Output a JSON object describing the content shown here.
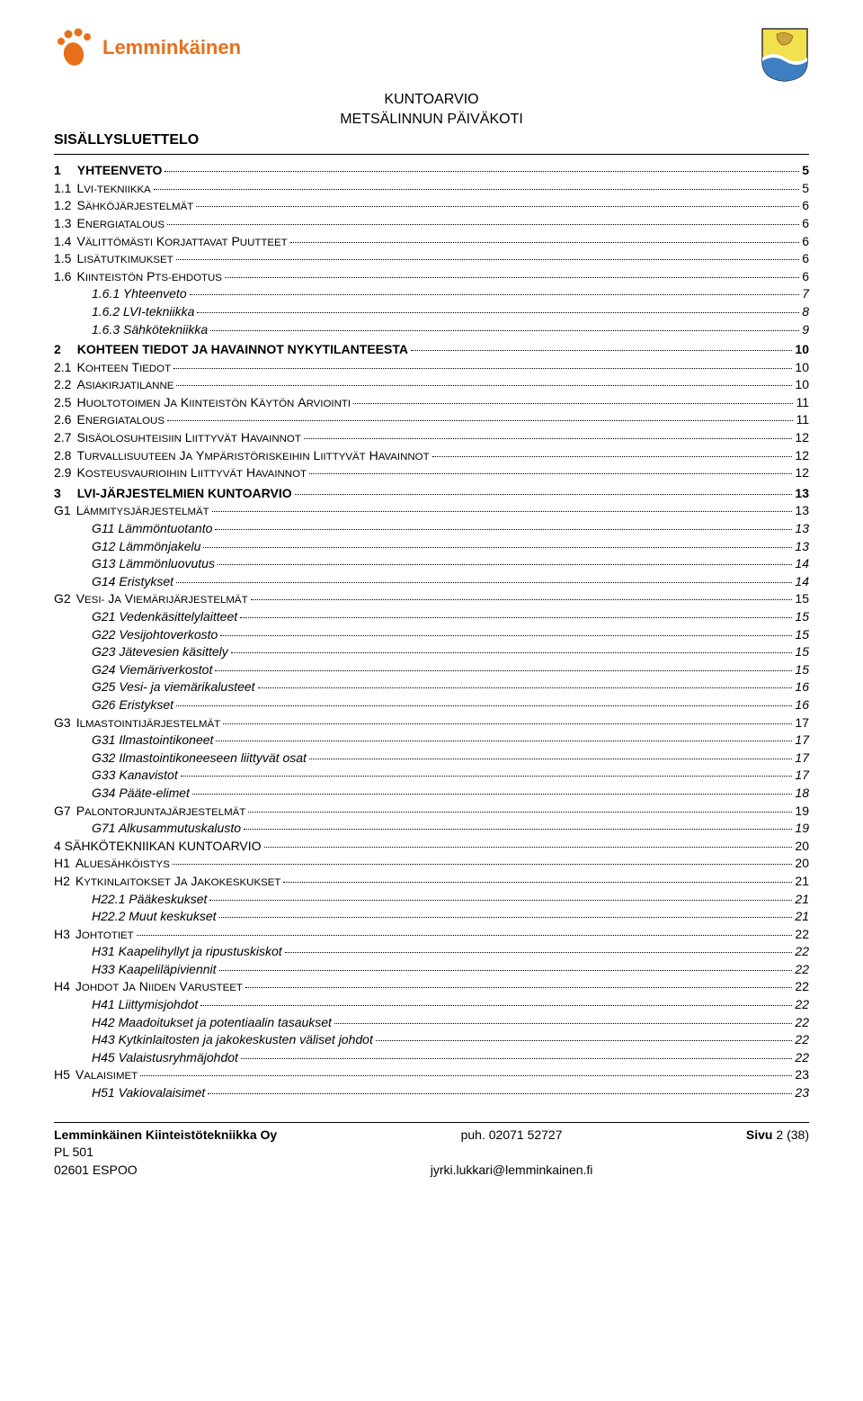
{
  "header": {
    "title_line1": "KUNTOARVIO",
    "title_line2": "METSÄLINNUN PÄIVÄKOTI",
    "section_title": "SISÄLLYSLUETTELO",
    "logo_text": "Lemminkäinen",
    "logo_color": "#e86f1a",
    "crest_bg_top": "#f3e04d",
    "crest_bg_bottom": "#3e7fc4",
    "crest_wave": "#ffffff"
  },
  "toc": [
    {
      "level": 1,
      "num": "1",
      "text": "YHTEENVETO",
      "page": "5"
    },
    {
      "level": 2,
      "num": "1.1",
      "text": "LVI-TEKNIIKKA",
      "page": "5",
      "sc": true
    },
    {
      "level": 2,
      "num": "1.2",
      "text": "SÄHKÖJÄRJESTELMÄT",
      "page": "6",
      "sc": true
    },
    {
      "level": 2,
      "num": "1.3",
      "text": "ENERGIATALOUS",
      "page": "6",
      "sc": true
    },
    {
      "level": 2,
      "num": "1.4",
      "text": "VÄLITTÖMÄSTI KORJATTAVAT PUUTTEET",
      "page": "6",
      "sc": true
    },
    {
      "level": 2,
      "num": "1.5",
      "text": "LISÄTUTKIMUKSET",
      "page": "6",
      "sc": true
    },
    {
      "level": 2,
      "num": "1.6",
      "text": "KIINTEISTÖN PTS-EHDOTUS",
      "page": "6",
      "sc": true
    },
    {
      "level": 3,
      "num": "",
      "text": "1.6.1 Yhteenveto",
      "page": "7"
    },
    {
      "level": 3,
      "num": "",
      "text": "1.6.2 LVI-tekniikka",
      "page": "8"
    },
    {
      "level": 3,
      "num": "",
      "text": "1.6.3 Sähkötekniikka",
      "page": "9"
    },
    {
      "level": 1,
      "num": "2",
      "text": "KOHTEEN TIEDOT JA HAVAINNOT NYKYTILANTEESTA",
      "page": "10"
    },
    {
      "level": 2,
      "num": "2.1",
      "text": "KOHTEEN TIEDOT",
      "page": "10",
      "sc": true
    },
    {
      "level": 2,
      "num": "2.2",
      "text": "ASIAKIRJATILANNE",
      "page": "10",
      "sc": true
    },
    {
      "level": 2,
      "num": "2.5",
      "text": "HUOLTOTOIMEN JA KIINTEISTÖN KÄYTÖN ARVIOINTI",
      "page": "11",
      "sc": true
    },
    {
      "level": 2,
      "num": "2.6",
      "text": "ENERGIATALOUS",
      "page": "11",
      "sc": true
    },
    {
      "level": 2,
      "num": "2.7",
      "text": "SISÄOLOSUHTEISIIN LIITTYVÄT HAVAINNOT",
      "page": "12",
      "sc": true
    },
    {
      "level": 2,
      "num": "2.8",
      "text": "TURVALLISUUTEEN JA YMPÄRISTÖRISKEIHIN LIITTYVÄT HAVAINNOT",
      "page": "12",
      "sc": true
    },
    {
      "level": 2,
      "num": "2.9",
      "text": "KOSTEUSVAURIOIHIN LIITTYVÄT HAVAINNOT",
      "page": "12",
      "sc": true
    },
    {
      "level": 1,
      "num": "3",
      "text": "LVI-JÄRJESTELMIEN KUNTOARVIO",
      "page": "13"
    },
    {
      "level": 2,
      "num": "G1",
      "text": "LÄMMITYSJÄRJESTELMÄT",
      "page": "13",
      "sc": true
    },
    {
      "level": 4,
      "num": "",
      "text": "G11 Lämmöntuotanto",
      "page": "13"
    },
    {
      "level": 4,
      "num": "",
      "text": "G12 Lämmönjakelu",
      "page": "13"
    },
    {
      "level": 4,
      "num": "",
      "text": "G13 Lämmönluovutus",
      "page": "14"
    },
    {
      "level": 4,
      "num": "",
      "text": "G14 Eristykset",
      "page": "14"
    },
    {
      "level": 2,
      "num": "G2",
      "text": "VESI- JA VIEMÄRIJÄRJESTELMÄT",
      "page": "15",
      "sc": true
    },
    {
      "level": 4,
      "num": "",
      "text": "G21 Vedenkäsittelylaitteet",
      "page": "15"
    },
    {
      "level": 4,
      "num": "",
      "text": "G22 Vesijohtoverkosto",
      "page": "15"
    },
    {
      "level": 4,
      "num": "",
      "text": "G23 Jätevesien käsittely",
      "page": "15"
    },
    {
      "level": 4,
      "num": "",
      "text": "G24 Viemäriverkostot",
      "page": "15"
    },
    {
      "level": 4,
      "num": "",
      "text": "G25 Vesi- ja viemärikalusteet",
      "page": "16"
    },
    {
      "level": 4,
      "num": "",
      "text": "G26 Eristykset",
      "page": "16"
    },
    {
      "level": 2,
      "num": "G3",
      "text": "ILMASTOINTIJÄRJESTELMÄT",
      "page": "17",
      "sc": true
    },
    {
      "level": 4,
      "num": "",
      "text": "G31 Ilmastointikoneet",
      "page": "17"
    },
    {
      "level": 4,
      "num": "",
      "text": "G32 Ilmastointikoneeseen liittyvät osat",
      "page": "17"
    },
    {
      "level": 4,
      "num": "",
      "text": "G33 Kanavistot",
      "page": "17"
    },
    {
      "level": 4,
      "num": "",
      "text": "G34 Pääte-elimet",
      "page": "18"
    },
    {
      "level": 2,
      "num": "G7",
      "text": "PALONTORJUNTAJÄRJESTELMÄT",
      "page": "19",
      "sc": true
    },
    {
      "level": 4,
      "num": "",
      "text": "G71 Alkusammutuskalusto",
      "page": "19"
    },
    {
      "level": 2,
      "num": "4",
      "text": "SÄHKÖTEKNIIKAN KUNTOARVIO",
      "page": "20"
    },
    {
      "level": 2,
      "num": "H1",
      "text": "ALUESÄHKÖISTYS",
      "page": "20",
      "sc": true
    },
    {
      "level": 2,
      "num": "H2",
      "text": "KYTKINLAITOKSET JA JAKOKESKUKSET",
      "page": "21",
      "sc": true
    },
    {
      "level": 4,
      "num": "",
      "text": "H22.1 Pääkeskukset",
      "page": "21"
    },
    {
      "level": 4,
      "num": "",
      "text": "H22.2 Muut keskukset",
      "page": "21"
    },
    {
      "level": 2,
      "num": "H3",
      "text": "JOHTOTIET",
      "page": "22",
      "sc": true
    },
    {
      "level": 4,
      "num": "",
      "text": "H31 Kaapelihyllyt ja ripustuskiskot",
      "page": "22"
    },
    {
      "level": 4,
      "num": "",
      "text": "H33 Kaapeliläpiviennit",
      "page": "22"
    },
    {
      "level": 2,
      "num": "H4",
      "text": "JOHDOT JA NIIDEN VARUSTEET",
      "page": "22",
      "sc": true
    },
    {
      "level": 4,
      "num": "",
      "text": "H41 Liittymisjohdot",
      "page": "22"
    },
    {
      "level": 4,
      "num": "",
      "text": "H42 Maadoitukset ja potentiaalin tasaukset",
      "page": "22"
    },
    {
      "level": 4,
      "num": "",
      "text": "H43 Kytkinlaitosten ja jakokeskusten väliset johdot",
      "page": "22"
    },
    {
      "level": 4,
      "num": "",
      "text": "H45 Valaistusryhmäjohdot",
      "page": "22"
    },
    {
      "level": 2,
      "num": "H5",
      "text": "VALAISIMET",
      "page": "23",
      "sc": true
    },
    {
      "level": 4,
      "num": "",
      "text": "H51 Vakiovalaisimet",
      "page": "23"
    }
  ],
  "footer": {
    "company": "Lemminkäinen Kiinteistötekniikka Oy",
    "addr1": "PL 501",
    "addr2": "02601 ESPOO",
    "phone": "puh. 02071 52727",
    "email": "jyrki.lukkari@lemminkainen.fi",
    "page_label": "Sivu",
    "page_current": "2",
    "page_total": "(38)"
  }
}
